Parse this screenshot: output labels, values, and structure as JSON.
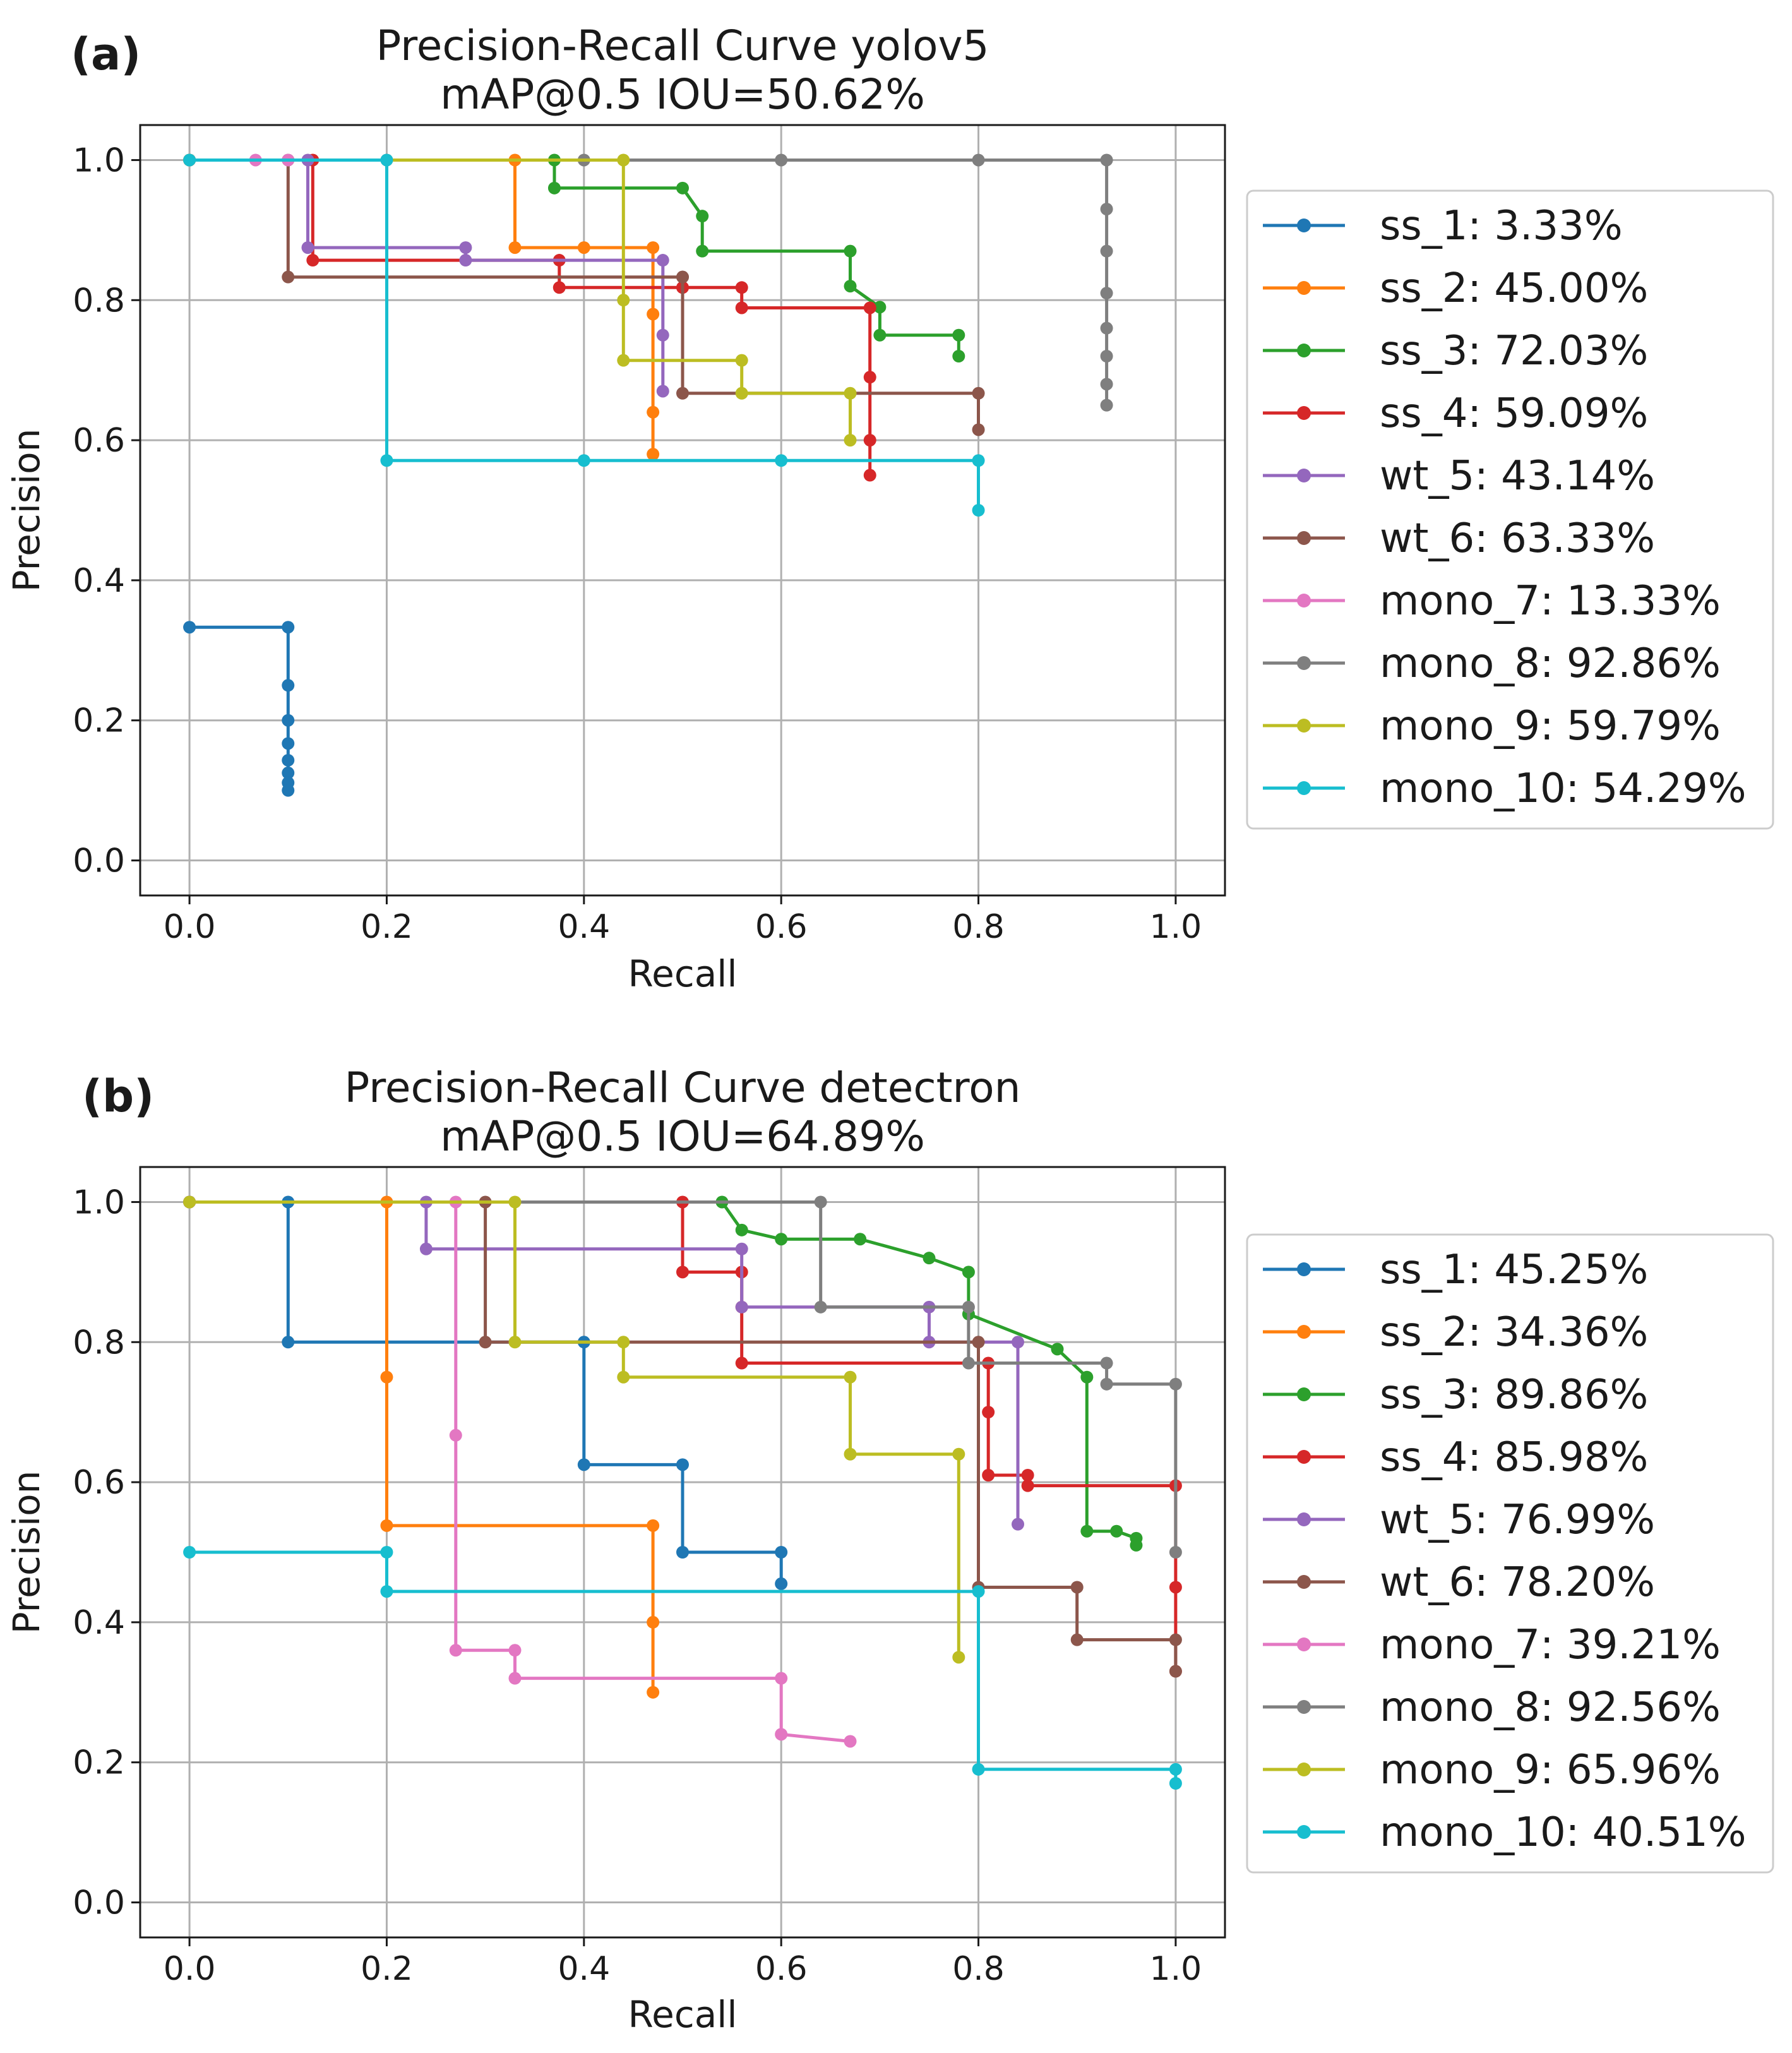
{
  "colors": [
    "#1f77b4",
    "#ff7f0e",
    "#2ca02c",
    "#d62728",
    "#9467bd",
    "#8c564b",
    "#e377c2",
    "#7f7f7f",
    "#bcbd22",
    "#17becf"
  ],
  "chart_data": [
    {
      "type": "line",
      "panel_label": "(a)",
      "title": "Precision-Recall Curve yolov5",
      "subtitle": "mAP@0.5 IOU=50.62%",
      "xlabel": "Recall",
      "ylabel": "Precision",
      "xlim": [
        -0.05,
        1.05
      ],
      "ylim": [
        -0.05,
        1.05
      ],
      "xticks": [
        "0.0",
        "0.2",
        "0.4",
        "0.6",
        "0.8",
        "1.0"
      ],
      "yticks": [
        "0.0",
        "0.2",
        "0.4",
        "0.6",
        "0.8",
        "1.0"
      ],
      "grid": true,
      "legend_position": "outside-right",
      "series": [
        {
          "name": "ss_1: 3.33%",
          "x": [
            0,
            0.1,
            0.1,
            0.1,
            0.1,
            0.1,
            0.1,
            0.1,
            0.1
          ],
          "y": [
            0.333,
            0.333,
            0.25,
            0.2,
            0.167,
            0.143,
            0.125,
            0.111,
            0.1
          ]
        },
        {
          "name": "ss_2: 45.00%",
          "x": [
            0,
            0.33,
            0.33,
            0.4,
            0.47,
            0.47,
            0.47,
            0.47
          ],
          "y": [
            1,
            1,
            0.875,
            0.875,
            0.875,
            0.78,
            0.64,
            0.58
          ]
        },
        {
          "name": "ss_3: 72.03%",
          "x": [
            0,
            0.37,
            0.37,
            0.5,
            0.52,
            0.52,
            0.67,
            0.67,
            0.7,
            0.7,
            0.78,
            0.78
          ],
          "y": [
            1,
            1,
            0.96,
            0.96,
            0.92,
            0.87,
            0.87,
            0.82,
            0.79,
            0.75,
            0.75,
            0.72
          ]
        },
        {
          "name": "ss_4: 59.09%",
          "x": [
            0,
            0.125,
            0.125,
            0.375,
            0.375,
            0.5,
            0.5,
            0.56,
            0.56,
            0.69,
            0.69,
            0.69,
            0.69
          ],
          "y": [
            1,
            1,
            0.857,
            0.857,
            0.818,
            0.818,
            0.818,
            0.818,
            0.789,
            0.789,
            0.69,
            0.6,
            0.55
          ]
        },
        {
          "name": "wt_5: 43.14%",
          "x": [
            0,
            0.12,
            0.12,
            0.28,
            0.28,
            0.48,
            0.48,
            0.48
          ],
          "y": [
            1,
            1,
            0.875,
            0.875,
            0.857,
            0.857,
            0.75,
            0.67
          ]
        },
        {
          "name": "wt_6: 63.33%",
          "x": [
            0,
            0.1,
            0.1,
            0.5,
            0.5,
            0.5,
            0.8,
            0.8
          ],
          "y": [
            1,
            1,
            0.833,
            0.833,
            0.833,
            0.667,
            0.667,
            0.615
          ]
        },
        {
          "name": "mono_7: 13.33%",
          "x": [
            0,
            0.067,
            0.1
          ],
          "y": [
            1,
            1,
            1
          ]
        },
        {
          "name": "mono_8: 92.86%",
          "x": [
            0,
            0.2,
            0.4,
            0.6,
            0.8,
            0.93,
            0.93,
            0.93,
            0.93,
            0.93,
            0.93,
            0.93,
            0.93
          ],
          "y": [
            1,
            1,
            1,
            1,
            1,
            1,
            0.93,
            0.87,
            0.81,
            0.76,
            0.72,
            0.68,
            0.65
          ]
        },
        {
          "name": "mono_9: 59.79%",
          "x": [
            0,
            0.44,
            0.44,
            0.44,
            0.56,
            0.56,
            0.67,
            0.67
          ],
          "y": [
            1,
            1,
            0.8,
            0.714,
            0.714,
            0.667,
            0.667,
            0.6
          ]
        },
        {
          "name": "mono_10: 54.29%",
          "x": [
            0,
            0.2,
            0.2,
            0.4,
            0.6,
            0.8,
            0.8
          ],
          "y": [
            1,
            1,
            0.571,
            0.571,
            0.571,
            0.571,
            0.5
          ]
        }
      ]
    },
    {
      "type": "line",
      "panel_label": "(b)",
      "title": "Precision-Recall Curve detectron",
      "subtitle": "mAP@0.5 IOU=64.89%",
      "xlabel": "Recall",
      "ylabel": "Precision",
      "xlim": [
        -0.05,
        1.05
      ],
      "ylim": [
        -0.05,
        1.05
      ],
      "xticks": [
        "0.0",
        "0.2",
        "0.4",
        "0.6",
        "0.8",
        "1.0"
      ],
      "yticks": [
        "0.0",
        "0.2",
        "0.4",
        "0.6",
        "0.8",
        "1.0"
      ],
      "grid": true,
      "legend_position": "outside-right",
      "series": [
        {
          "name": "ss_1: 45.25%",
          "x": [
            0,
            0.1,
            0.1,
            0.4,
            0.4,
            0.5,
            0.5,
            0.6,
            0.6
          ],
          "y": [
            1,
            1,
            0.8,
            0.8,
            0.625,
            0.625,
            0.5,
            0.5,
            0.455
          ]
        },
        {
          "name": "ss_2: 34.36%",
          "x": [
            0,
            0.2,
            0.2,
            0.2,
            0.47,
            0.47,
            0.47
          ],
          "y": [
            1,
            1,
            0.75,
            0.538,
            0.538,
            0.4,
            0.3
          ]
        },
        {
          "name": "ss_3: 89.86%",
          "x": [
            0,
            0.54,
            0.56,
            0.6,
            0.68,
            0.75,
            0.79,
            0.79,
            0.88,
            0.91,
            0.91,
            0.94,
            0.96,
            0.96
          ],
          "y": [
            1,
            1,
            0.96,
            0.947,
            0.947,
            0.92,
            0.9,
            0.84,
            0.79,
            0.75,
            0.53,
            0.53,
            0.52,
            0.51
          ]
        },
        {
          "name": "ss_4: 85.98%",
          "x": [
            0,
            0.5,
            0.5,
            0.56,
            0.56,
            0.56,
            0.81,
            0.81,
            0.81,
            0.85,
            0.85,
            1,
            1,
            1
          ],
          "y": [
            1,
            1,
            0.9,
            0.9,
            0.85,
            0.77,
            0.77,
            0.7,
            0.61,
            0.61,
            0.595,
            0.595,
            0.45,
            0.33
          ]
        },
        {
          "name": "wt_5: 76.99%",
          "x": [
            0,
            0.24,
            0.24,
            0.56,
            0.56,
            0.75,
            0.75,
            0.84,
            0.84
          ],
          "y": [
            1,
            1,
            0.933,
            0.933,
            0.85,
            0.85,
            0.8,
            0.8,
            0.54
          ]
        },
        {
          "name": "wt_6: 78.20%",
          "x": [
            0,
            0.3,
            0.3,
            0.8,
            0.8,
            0.9,
            0.9,
            1,
            1
          ],
          "y": [
            1,
            1,
            0.8,
            0.8,
            0.45,
            0.45,
            0.375,
            0.375,
            0.33
          ]
        },
        {
          "name": "mono_7: 39.21%",
          "x": [
            0,
            0.27,
            0.27,
            0.27,
            0.33,
            0.33,
            0.6,
            0.6,
            0.67
          ],
          "y": [
            1,
            1,
            0.667,
            0.36,
            0.36,
            0.32,
            0.32,
            0.24,
            0.23
          ]
        },
        {
          "name": "mono_8: 92.56%",
          "x": [
            0,
            0.64,
            0.64,
            0.79,
            0.79,
            0.93,
            0.93,
            1,
            1
          ],
          "y": [
            1,
            1,
            0.85,
            0.85,
            0.77,
            0.77,
            0.74,
            0.74,
            0.5
          ]
        },
        {
          "name": "mono_9: 65.96%",
          "x": [
            0,
            0.33,
            0.33,
            0.44,
            0.44,
            0.67,
            0.67,
            0.78,
            0.78
          ],
          "y": [
            1,
            1,
            0.8,
            0.8,
            0.75,
            0.75,
            0.64,
            0.64,
            0.35
          ]
        },
        {
          "name": "mono_10: 40.51%",
          "x": [
            0,
            0.2,
            0.2,
            0.8,
            0.8,
            1,
            1
          ],
          "y": [
            0.5,
            0.5,
            0.444,
            0.444,
            0.19,
            0.19,
            0.17
          ]
        }
      ]
    }
  ]
}
